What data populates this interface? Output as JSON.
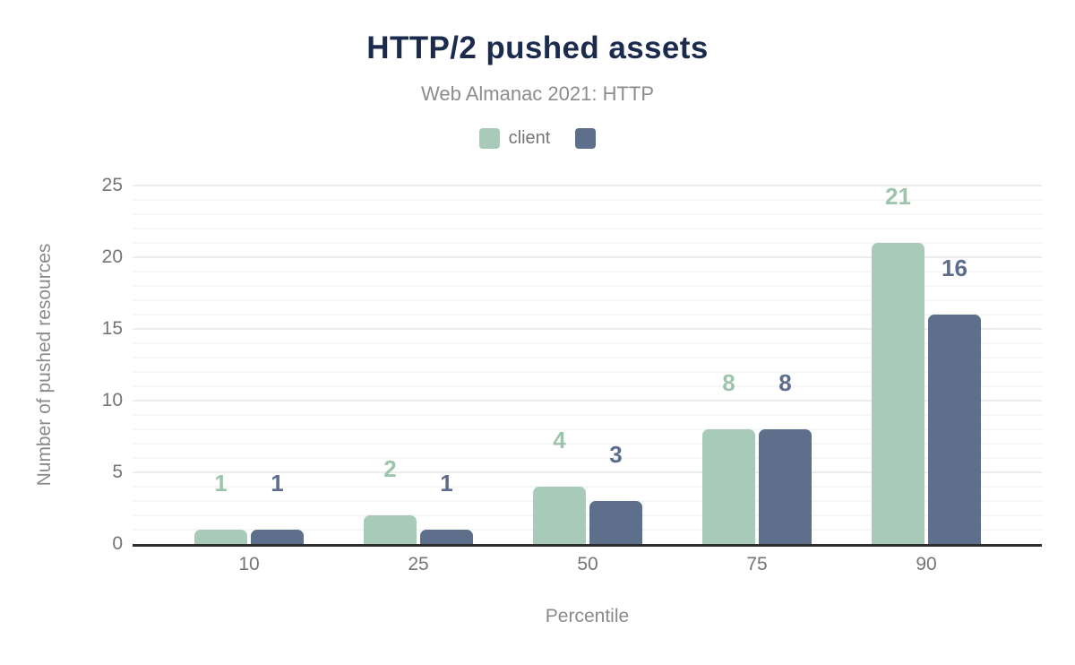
{
  "figure": {
    "title": "HTTP/2 pushed assets",
    "subtitle": "Web Almanac 2021: HTTP"
  },
  "legend": {
    "items": [
      {
        "label": "client",
        "color": "#a7cab9"
      },
      {
        "label": "",
        "color": "#5e6f8c"
      }
    ]
  },
  "chart_data": {
    "type": "bar",
    "title": "HTTP/2 pushed assets",
    "subtitle": "Web Almanac 2021: HTTP",
    "categories": [
      "10",
      "25",
      "50",
      "75",
      "90"
    ],
    "series": [
      {
        "name": "client",
        "color": "#a7cab9",
        "label_color": "#9fc4ae",
        "values": [
          1,
          2,
          4,
          8,
          21
        ]
      },
      {
        "name": "",
        "color": "#5e6f8c",
        "label_color": "#5d6e8d",
        "values": [
          1,
          1,
          3,
          8,
          16
        ]
      }
    ],
    "xlabel": "Percentile",
    "ylabel": "Number of pushed resources",
    "ylim": [
      0,
      25
    ],
    "yticks": [
      0,
      5,
      10,
      15,
      20,
      25
    ],
    "grid": "horizontal, minor every 1 unit, major every 5 units",
    "legend_position": "top center",
    "data_labels": true
  },
  "colors": {
    "title": "#1b2b4d",
    "subtitle": "#8c8c8c",
    "tick_label": "#757575",
    "axis_title": "#8a8a8a",
    "axis_line": "#2e2e2e",
    "grid_minor": "#f6f6f6",
    "grid_major": "#ececec",
    "background": "#ffffff"
  }
}
